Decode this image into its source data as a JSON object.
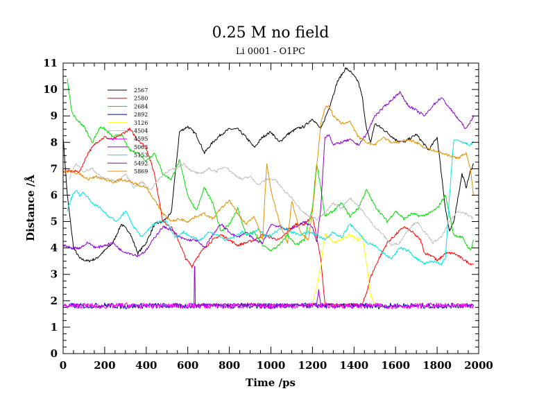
{
  "chart_data": {
    "type": "line",
    "title": "0.25 M no field",
    "subtitle": "Li 0001 - O1PC",
    "xlabel": "Time /ps",
    "ylabel": "Distance /Å",
    "xlim": [
      0,
      2000
    ],
    "ylim": [
      0,
      11
    ],
    "xticks": [
      0,
      200,
      400,
      600,
      800,
      1000,
      1200,
      1400,
      1600,
      1800,
      2000
    ],
    "yticks": [
      0,
      1,
      2,
      3,
      4,
      5,
      6,
      7,
      8,
      9,
      10,
      11
    ],
    "legend_position": "top-left",
    "series": [
      {
        "name": "2567",
        "color": "#000000",
        "x": [
          0,
          20,
          50,
          80,
          120,
          160,
          200,
          240,
          280,
          320,
          360,
          400,
          440,
          480,
          520,
          560,
          600,
          640,
          680,
          720,
          760,
          800,
          840,
          880,
          920,
          960,
          1000,
          1040,
          1080,
          1120,
          1160,
          1200,
          1240,
          1280,
          1320,
          1360,
          1380,
          1420,
          1440,
          1460,
          1480,
          1500,
          1540,
          1600,
          1640,
          1700,
          1760,
          1800,
          1840,
          1860,
          1880,
          1900,
          1920,
          1940,
          1960,
          1975
        ],
        "y": [
          8.2,
          6.0,
          4.0,
          3.6,
          3.5,
          3.6,
          3.9,
          4.2,
          4.9,
          4.6,
          3.8,
          4.2,
          4.9,
          5.0,
          5.3,
          8.4,
          8.6,
          8.3,
          7.6,
          8.0,
          8.3,
          8.5,
          8.5,
          8.2,
          7.8,
          8.2,
          8.4,
          8.0,
          8.3,
          8.5,
          8.6,
          8.9,
          8.5,
          9.3,
          10.3,
          10.8,
          10.7,
          10.3,
          9.7,
          8.5,
          8.0,
          8.7,
          8.5,
          8.1,
          8.0,
          8.3,
          7.7,
          8.2,
          5.5,
          4.6,
          5.0,
          5.9,
          6.8,
          6.3,
          6.9,
          7.2
        ]
      },
      {
        "name": "2580",
        "color": "#ff0000",
        "x": [
          0,
          40,
          80,
          120,
          160,
          200,
          240,
          280,
          320,
          360,
          400,
          440,
          480,
          520,
          560,
          590,
          620,
          640,
          680,
          720,
          760,
          800,
          840,
          880,
          920,
          960,
          1000,
          1040,
          1080,
          1120,
          1160,
          1200,
          1240,
          1260,
          1300,
          1350,
          1400,
          1440,
          1460,
          1480,
          1520,
          1560,
          1600,
          1640,
          1680,
          1720,
          1740,
          1780,
          1800,
          1840,
          1880,
          1920,
          1960,
          1975
        ],
        "y": [
          6.9,
          6.9,
          6.9,
          7.6,
          8.0,
          8.2,
          8.1,
          8.3,
          8.5,
          8.1,
          7.8,
          6.8,
          5.0,
          4.8,
          4.2,
          3.6,
          3.3,
          3.6,
          4.0,
          4.3,
          4.5,
          4.3,
          4.1,
          4.2,
          4.3,
          4.5,
          4.4,
          4.3,
          4.6,
          4.9,
          4.9,
          5.2,
          3.6,
          1.85,
          1.85,
          1.85,
          1.85,
          1.85,
          2.3,
          2.9,
          3.6,
          4.2,
          4.5,
          4.8,
          4.6,
          4.3,
          3.8,
          3.7,
          3.5,
          3.8,
          3.8,
          3.6,
          3.4,
          3.4
        ]
      },
      {
        "name": "2684",
        "color": "#00dd00",
        "x": [
          20,
          40,
          60,
          100,
          140,
          180,
          200,
          240,
          280,
          320,
          360,
          400,
          440,
          480,
          520,
          560,
          600,
          640,
          680,
          720,
          760,
          800,
          840,
          880,
          920,
          960,
          1000,
          1040,
          1080,
          1120,
          1160,
          1200,
          1220,
          1240,
          1260,
          1300,
          1340,
          1380,
          1420,
          1460,
          1500,
          1560,
          1600,
          1640,
          1680,
          1720,
          1760,
          1800,
          1840,
          1880,
          1920,
          1960,
          1975
        ],
        "y": [
          10.4,
          9.2,
          8.9,
          8.6,
          8.0,
          8.6,
          8.5,
          8.2,
          8.3,
          7.7,
          7.6,
          7.3,
          7.6,
          6.8,
          6.6,
          7.3,
          6.0,
          5.4,
          6.3,
          5.7,
          4.6,
          4.9,
          5.5,
          4.5,
          4.6,
          4.1,
          3.9,
          4.1,
          4.5,
          4.1,
          4.3,
          5.5,
          7.2,
          6.3,
          5.2,
          5.4,
          5.7,
          5.2,
          5.5,
          6.2,
          5.6,
          5.0,
          5.4,
          5.1,
          5.3,
          5.2,
          5.3,
          5.5,
          6.0,
          4.5,
          4.4,
          3.9,
          4.3
        ]
      },
      {
        "name": "2892",
        "color": "#0000aa",
        "x": [
          0,
          100,
          200,
          300,
          400,
          500,
          600,
          700,
          800,
          900,
          1000,
          1100,
          1200,
          1300,
          1400,
          1500,
          1600,
          1700,
          1800,
          1900,
          1975
        ],
        "y": [
          1.82,
          1.8,
          1.83,
          1.79,
          1.82,
          1.81,
          1.8,
          1.83,
          1.8,
          1.82,
          1.79,
          1.81,
          1.82,
          1.8,
          1.81,
          1.79,
          1.82,
          1.81,
          1.8,
          1.82,
          1.81
        ]
      },
      {
        "name": "3126",
        "color": "#ffff00",
        "x": [
          1160,
          1180,
          1200,
          1220,
          1240,
          1250,
          1260,
          1280,
          1300,
          1340,
          1380,
          1420,
          1440,
          1460,
          1480,
          1500
        ],
        "y": [
          1.85,
          1.85,
          1.9,
          2.5,
          3.3,
          4.0,
          4.5,
          4.4,
          4.2,
          4.3,
          4.5,
          4.3,
          4.5,
          3.4,
          2.2,
          1.85
        ]
      },
      {
        "name": "4504",
        "color": "#c0c0c0",
        "x": [
          30,
          60,
          100,
          140,
          180,
          220,
          260,
          300,
          340,
          380,
          420,
          460,
          500,
          540,
          580,
          620,
          660,
          700,
          740,
          780,
          820,
          860,
          900,
          940,
          980,
          1020,
          1060,
          1100,
          1140,
          1180,
          1220,
          1260,
          1300,
          1340,
          1380,
          1420,
          1460,
          1500,
          1540,
          1580,
          1620,
          1660,
          1700,
          1740,
          1780,
          1820,
          1860,
          1900,
          1940,
          1975
        ],
        "y": [
          6.6,
          7.2,
          6.9,
          7.0,
          6.7,
          6.6,
          6.5,
          6.8,
          6.3,
          6.5,
          6.2,
          6.6,
          6.9,
          7.0,
          7.2,
          6.9,
          6.8,
          7.0,
          6.9,
          7.1,
          6.8,
          6.6,
          6.7,
          6.4,
          6.6,
          6.6,
          6.2,
          5.9,
          5.5,
          5.2,
          5.1,
          5.3,
          5.7,
          5.5,
          5.9,
          5.6,
          5.2,
          4.8,
          4.5,
          4.1,
          4.2,
          4.7,
          5.0,
          4.6,
          4.2,
          4.4,
          5.0,
          5.4,
          5.3,
          5.1
        ]
      },
      {
        "name": "4595",
        "color": "#ff00ff",
        "x": [
          0,
          100,
          200,
          300,
          400,
          500,
          600,
          700,
          800,
          900,
          1000,
          1100,
          1200,
          1300,
          1400,
          1500,
          1600,
          1700,
          1800,
          1900,
          1975
        ],
        "y": [
          1.8,
          1.82,
          1.79,
          1.83,
          1.8,
          1.81,
          1.82,
          1.8,
          1.79,
          1.82,
          1.81,
          1.8,
          1.83,
          1.8,
          1.81,
          1.82,
          1.79,
          1.81,
          1.82,
          1.8,
          1.81
        ]
      },
      {
        "name": "5063",
        "color": "#8800cc",
        "x": [
          0,
          40,
          80,
          120,
          160,
          200,
          240,
          280,
          320,
          360,
          400,
          440,
          480,
          520,
          560,
          600,
          640,
          680,
          720,
          760,
          800,
          840,
          880,
          920,
          960,
          1000,
          1040,
          1080,
          1120,
          1160,
          1200,
          1220,
          1240,
          1260,
          1280,
          1300,
          1340,
          1380,
          1420,
          1460,
          1500,
          1540,
          1580,
          1620,
          1660,
          1700,
          1740,
          1780,
          1820,
          1860,
          1900,
          1940,
          1975
        ],
        "y": [
          4.1,
          4.0,
          4.0,
          4.2,
          4.0,
          4.1,
          4.2,
          3.9,
          3.8,
          3.7,
          3.9,
          4.4,
          4.8,
          4.7,
          4.4,
          4.3,
          4.3,
          4.0,
          4.5,
          4.9,
          4.6,
          4.4,
          4.6,
          4.3,
          4.2,
          4.9,
          4.8,
          4.7,
          4.8,
          5.0,
          4.8,
          4.2,
          5.5,
          8.2,
          8.3,
          7.9,
          8.0,
          8.1,
          7.9,
          8.3,
          9.0,
          9.3,
          9.6,
          9.9,
          9.4,
          9.2,
          9.0,
          9.4,
          9.7,
          9.3,
          8.9,
          8.5,
          9.0
        ]
      },
      {
        "name": "5153",
        "color": "#00e5e5",
        "x": [
          20,
          40,
          60,
          80,
          100,
          140,
          180,
          220,
          260,
          300,
          340,
          380,
          420,
          460,
          500,
          540,
          580,
          620,
          660,
          700,
          740,
          780,
          820,
          860,
          900,
          940,
          980,
          1020,
          1060,
          1100,
          1140,
          1180,
          1220,
          1260,
          1300,
          1340,
          1380,
          1420,
          1460,
          1500,
          1540,
          1580,
          1620,
          1660,
          1700,
          1740,
          1780,
          1820,
          1840,
          1860,
          1880,
          1920,
          1960,
          1975
        ],
        "y": [
          5.4,
          5.9,
          6.2,
          6.0,
          6.1,
          5.7,
          5.5,
          5.2,
          5.0,
          5.4,
          4.8,
          4.4,
          4.8,
          5.0,
          5.0,
          4.4,
          4.6,
          4.4,
          4.3,
          4.6,
          4.5,
          4.3,
          4.4,
          4.6,
          4.5,
          4.7,
          4.4,
          4.6,
          4.8,
          4.6,
          4.5,
          4.6,
          4.5,
          4.3,
          4.6,
          4.4,
          4.9,
          4.6,
          4.2,
          4.1,
          3.8,
          3.6,
          4.0,
          3.9,
          3.6,
          3.4,
          3.5,
          3.4,
          3.6,
          6.0,
          8.1,
          8.0,
          7.9,
          8.0
        ]
      },
      {
        "name": "5492",
        "color": "#9900cc",
        "x": [
          630,
          632,
          634,
          636,
          1220,
          1230,
          1240
        ],
        "y": [
          1.85,
          3.3,
          3.3,
          1.85,
          1.85,
          2.4,
          1.85
        ]
      },
      {
        "name": "5869",
        "color": "#e09000",
        "x": [
          0,
          40,
          80,
          120,
          160,
          200,
          240,
          280,
          320,
          360,
          400,
          440,
          480,
          520,
          560,
          600,
          640,
          680,
          720,
          760,
          800,
          840,
          880,
          920,
          960,
          980,
          1000,
          1040,
          1080,
          1100,
          1140,
          1180,
          1200,
          1220,
          1240,
          1260,
          1280,
          1300,
          1340,
          1380,
          1420,
          1460,
          1500,
          1540,
          1580,
          1620,
          1660,
          1700,
          1740,
          1780,
          1820,
          1860,
          1900,
          1940,
          1960,
          1975
        ],
        "y": [
          6.9,
          6.9,
          6.8,
          6.6,
          6.7,
          6.6,
          6.5,
          6.6,
          6.5,
          6.4,
          6.3,
          5.8,
          5.3,
          5.0,
          5.1,
          5.0,
          5.2,
          5.3,
          5.1,
          5.5,
          5.8,
          5.3,
          4.9,
          5.2,
          4.3,
          7.2,
          6.2,
          5.0,
          4.2,
          5.8,
          4.6,
          4.3,
          5.4,
          7.0,
          8.7,
          9.3,
          9.4,
          9.0,
          8.7,
          8.8,
          8.2,
          8.0,
          7.9,
          8.2,
          8.0,
          8.0,
          8.1,
          8.0,
          7.8,
          7.7,
          7.6,
          7.5,
          7.4,
          7.6,
          7.0,
          6.0
        ]
      }
    ]
  }
}
